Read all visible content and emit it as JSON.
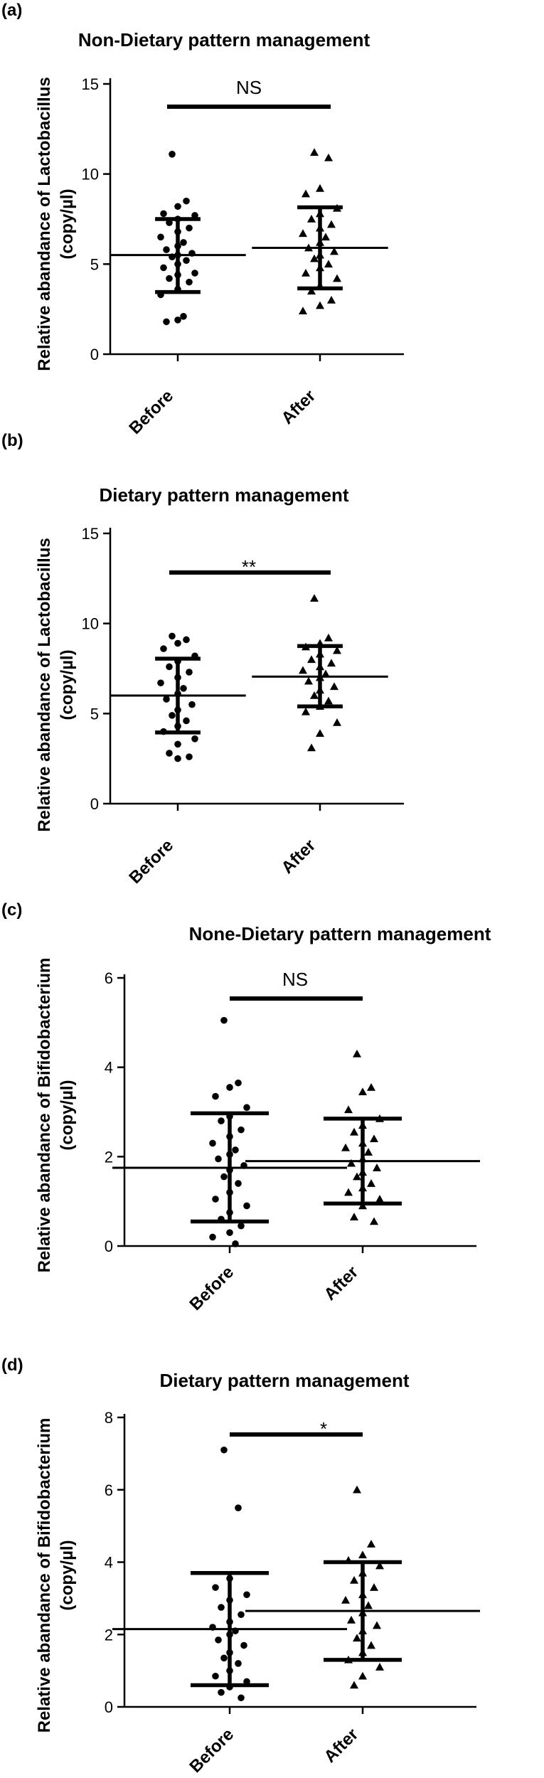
{
  "chart_data": [
    {
      "panel": "(a)",
      "type": "scatter",
      "title": "Non-Dietary pattern management",
      "ylabel_line1": "Relative abandance of Lactobacillus",
      "ylabel_line2": "(copy/µl)",
      "ylim": [
        0,
        15
      ],
      "yticks": [
        0,
        5,
        10,
        15
      ],
      "ytick_labels": [
        "0",
        "5",
        "10",
        "15"
      ],
      "categories": [
        "Before",
        "After"
      ],
      "significance": "NS",
      "groups": [
        {
          "name": "Before",
          "marker": "circle",
          "mean": 5.5,
          "sd_low": 3.45,
          "sd_high": 7.5,
          "points": [
            11.1,
            8.5,
            8.2,
            7.8,
            7.7,
            7.5,
            7.3,
            7.0,
            6.8,
            6.5,
            6.2,
            6.0,
            5.8,
            5.6,
            5.5,
            5.4,
            5.2,
            5.0,
            4.8,
            4.5,
            4.4,
            4.2,
            4.0,
            3.6,
            3.3,
            2.1,
            1.9,
            1.8
          ]
        },
        {
          "name": "After",
          "marker": "triangle",
          "mean": 5.9,
          "sd_low": 3.65,
          "sd_high": 8.15,
          "points": [
            11.2,
            10.9,
            9.2,
            8.9,
            8.1,
            7.8,
            7.5,
            7.2,
            7.0,
            6.7,
            6.5,
            6.2,
            5.9,
            5.7,
            5.5,
            5.3,
            5.0,
            4.8,
            4.5,
            4.2,
            3.8,
            3.5,
            3.0,
            2.7,
            2.4
          ]
        }
      ]
    },
    {
      "panel": "(b)",
      "type": "scatter",
      "title": "Dietary pattern management",
      "ylabel_line1": "Relative abandance of Lactobacillus",
      "ylabel_line2": "(copy/µl)",
      "ylim": [
        0,
        15
      ],
      "yticks": [
        0,
        5,
        10,
        15
      ],
      "ytick_labels": [
        "0",
        "5",
        "10",
        "15"
      ],
      "categories": [
        "Before",
        "After"
      ],
      "significance": "**",
      "groups": [
        {
          "name": "Before",
          "marker": "circle",
          "mean": 6.0,
          "sd_low": 3.95,
          "sd_high": 8.05,
          "points": [
            9.3,
            9.1,
            8.9,
            8.6,
            8.2,
            7.9,
            7.6,
            7.3,
            7.0,
            6.7,
            6.4,
            6.1,
            5.8,
            5.5,
            5.2,
            4.9,
            4.6,
            4.3,
            4.0,
            3.6,
            3.3,
            2.8,
            2.6,
            2.5
          ]
        },
        {
          "name": "After",
          "marker": "triangle",
          "mean": 7.05,
          "sd_low": 5.4,
          "sd_high": 8.75,
          "points": [
            11.4,
            9.2,
            8.9,
            8.7,
            8.5,
            8.3,
            8.0,
            7.8,
            7.6,
            7.4,
            7.2,
            7.0,
            6.8,
            6.5,
            6.3,
            6.0,
            5.7,
            5.4,
            5.1,
            4.5,
            3.9,
            3.1
          ]
        }
      ]
    },
    {
      "panel": "(c)",
      "type": "scatter",
      "title": "None-Dietary pattern management",
      "ylabel_line1": "Relative abandance of Bifidobacterium",
      "ylabel_line2": "(copy/µl)",
      "ylim": [
        0,
        6
      ],
      "yticks": [
        0,
        2,
        4,
        6
      ],
      "ytick_labels": [
        "0",
        "2",
        "4",
        "6"
      ],
      "categories": [
        "Before",
        "After"
      ],
      "significance": "NS",
      "groups": [
        {
          "name": "Before",
          "marker": "circle",
          "mean": 1.75,
          "sd_low": 0.55,
          "sd_high": 2.97,
          "points": [
            5.05,
            3.65,
            3.55,
            3.35,
            3.1,
            2.9,
            2.8,
            2.6,
            2.45,
            2.3,
            2.15,
            2.05,
            1.95,
            1.8,
            1.7,
            1.55,
            1.4,
            1.2,
            1.05,
            0.9,
            0.75,
            0.6,
            0.45,
            0.3,
            0.2,
            0.05
          ]
        },
        {
          "name": "After",
          "marker": "triangle",
          "mean": 1.9,
          "sd_low": 0.95,
          "sd_high": 2.85,
          "points": [
            4.3,
            3.55,
            3.45,
            3.05,
            2.85,
            2.7,
            2.55,
            2.4,
            2.3,
            2.2,
            2.1,
            1.95,
            1.85,
            1.75,
            1.65,
            1.55,
            1.4,
            1.3,
            1.2,
            1.05,
            0.9,
            0.65,
            0.55
          ]
        }
      ]
    },
    {
      "panel": "(d)",
      "type": "scatter",
      "title": "Dietary pattern management",
      "ylabel_line1": "Relative abandance of Bifidobacterium",
      "ylabel_line2": "(copy/µl)",
      "ylim": [
        0,
        8
      ],
      "yticks": [
        0,
        2,
        4,
        6,
        8
      ],
      "ytick_labels": [
        "0",
        "2",
        "4",
        "6",
        "8"
      ],
      "categories": [
        "Before",
        "After"
      ],
      "significance": "*",
      "groups": [
        {
          "name": "Before",
          "marker": "circle",
          "mean": 2.15,
          "sd_low": 0.6,
          "sd_high": 3.7,
          "points": [
            7.1,
            5.5,
            3.55,
            3.3,
            3.1,
            2.95,
            2.75,
            2.55,
            2.35,
            2.2,
            2.1,
            2.0,
            1.85,
            1.7,
            1.5,
            1.35,
            1.2,
            1.0,
            0.85,
            0.7,
            0.55,
            0.4,
            0.25
          ]
        },
        {
          "name": "After",
          "marker": "triangle",
          "mean": 2.65,
          "sd_low": 1.3,
          "sd_high": 4.0,
          "points": [
            6.0,
            4.5,
            4.2,
            4.05,
            3.9,
            3.7,
            3.5,
            3.3,
            3.1,
            2.95,
            2.8,
            2.6,
            2.4,
            2.25,
            2.1,
            1.9,
            1.7,
            1.5,
            1.3,
            1.1,
            0.85,
            0.6
          ]
        }
      ]
    }
  ]
}
